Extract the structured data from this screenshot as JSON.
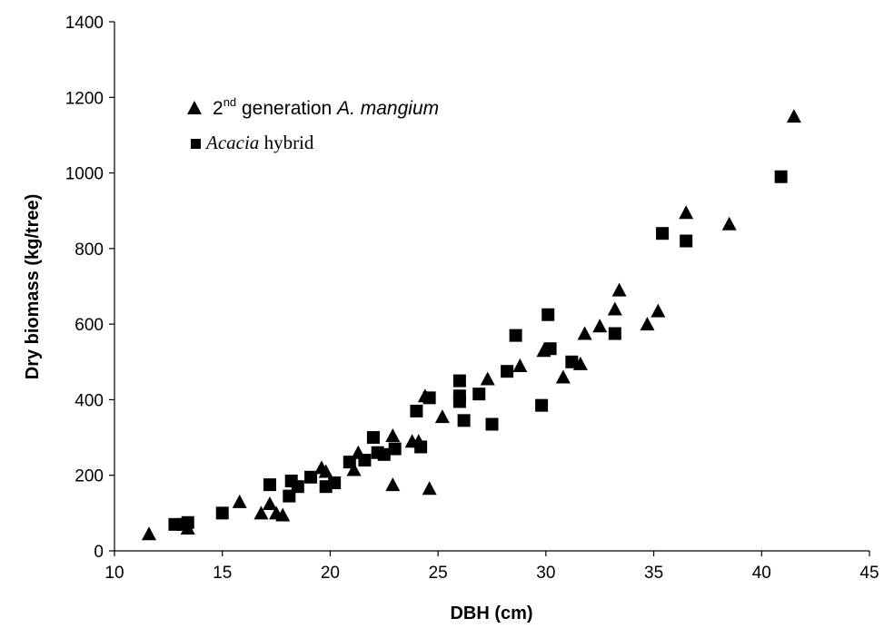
{
  "chart_data": {
    "type": "scatter",
    "xlabel": "DBH (cm)",
    "ylabel": "Dry biomass (kg/tree)",
    "xlim": [
      10,
      45
    ],
    "ylim": [
      0,
      1400
    ],
    "xticks": [
      "10",
      "15",
      "20",
      "25",
      "30",
      "35",
      "40",
      "45"
    ],
    "yticks": [
      "0",
      "200",
      "400",
      "600",
      "800",
      "1000",
      "1200",
      "1400"
    ],
    "grid": false,
    "legend_position": "top-left",
    "legend": {
      "series1": {
        "prefix": "2",
        "sup": "nd",
        "mid": " generation ",
        "italic": "A. mangium"
      },
      "series2": {
        "italic": "Acacia",
        "rest": " hybrid"
      }
    },
    "series": [
      {
        "marker": "triangle",
        "color": "#000000",
        "points": [
          [
            11.6,
            45
          ],
          [
            13.4,
            60
          ],
          [
            15.8,
            130
          ],
          [
            16.8,
            100
          ],
          [
            17.2,
            125
          ],
          [
            17.5,
            100
          ],
          [
            17.8,
            95
          ],
          [
            19.6,
            220
          ],
          [
            19.8,
            210
          ],
          [
            21.1,
            215
          ],
          [
            21.3,
            260
          ],
          [
            22.9,
            305
          ],
          [
            23.8,
            290
          ],
          [
            24.1,
            290
          ],
          [
            24.4,
            410
          ],
          [
            22.9,
            175
          ],
          [
            24.6,
            165
          ],
          [
            25.2,
            355
          ],
          [
            27.3,
            455
          ],
          [
            28.8,
            490
          ],
          [
            29.9,
            530
          ],
          [
            30.8,
            460
          ],
          [
            31.6,
            495
          ],
          [
            31.8,
            575
          ],
          [
            32.5,
            595
          ],
          [
            33.2,
            640
          ],
          [
            33.4,
            690
          ],
          [
            34.7,
            600
          ],
          [
            35.2,
            635
          ],
          [
            36.5,
            895
          ],
          [
            38.5,
            865
          ],
          [
            41.5,
            1150
          ]
        ]
      },
      {
        "marker": "square",
        "color": "#000000",
        "points": [
          [
            12.8,
            70
          ],
          [
            13.2,
            70
          ],
          [
            13.4,
            75
          ],
          [
            15.0,
            100
          ],
          [
            17.2,
            175
          ],
          [
            18.1,
            145
          ],
          [
            18.2,
            185
          ],
          [
            18.5,
            170
          ],
          [
            19.1,
            195
          ],
          [
            19.8,
            170
          ],
          [
            20.2,
            180
          ],
          [
            20.9,
            235
          ],
          [
            21.6,
            240
          ],
          [
            22.0,
            300
          ],
          [
            22.2,
            260
          ],
          [
            22.5,
            255
          ],
          [
            23.0,
            270
          ],
          [
            24.0,
            370
          ],
          [
            24.2,
            275
          ],
          [
            24.6,
            405
          ],
          [
            26.0,
            450
          ],
          [
            26.0,
            410
          ],
          [
            26.0,
            395
          ],
          [
            26.2,
            345
          ],
          [
            26.9,
            415
          ],
          [
            27.5,
            335
          ],
          [
            28.2,
            475
          ],
          [
            28.6,
            570
          ],
          [
            29.8,
            385
          ],
          [
            30.1,
            625
          ],
          [
            30.2,
            535
          ],
          [
            31.2,
            500
          ],
          [
            33.2,
            575
          ],
          [
            35.4,
            840
          ],
          [
            36.5,
            820
          ],
          [
            40.9,
            990
          ]
        ]
      }
    ]
  }
}
